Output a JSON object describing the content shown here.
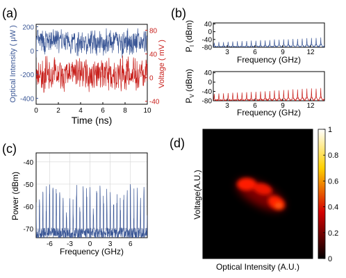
{
  "colors": {
    "blue": "#3b5796",
    "red": "#c8201c",
    "axis": "#000000",
    "grid": "#d9d9d9"
  },
  "chart_data": [
    {
      "panel": "(a)",
      "type": "line",
      "xlabel": "Time (ns)",
      "ylabel_left": "Optical Intensity ( μW )",
      "ylabel_right": "Voltage ( mV )",
      "xlim": [
        0,
        10
      ],
      "ylim_left": [
        -450,
        220
      ],
      "ylim_right": [
        -45,
        90
      ],
      "xticks": [
        "0",
        "2",
        "4",
        "6",
        "8",
        "10"
      ],
      "yticks_left": [
        "200",
        "0",
        "-200",
        "-400"
      ],
      "yticks_right": [
        "80",
        "40",
        "0",
        "-40"
      ],
      "series": [
        {
          "axis": "left",
          "color": "#3b5796",
          "x_range": [
            0,
            10
          ],
          "mean": 70,
          "min": -90,
          "max": 180,
          "description_points": 420
        },
        {
          "axis": "right",
          "color": "#c8201c",
          "x_range": [
            0,
            10
          ],
          "mean": 5,
          "min": -30,
          "max": 35,
          "description_points": 420
        }
      ]
    },
    {
      "panel": "(b) top",
      "type": "line",
      "xlabel": "Frequency (GHz)",
      "ylabel": "P (dBm)",
      "ylabel_subscript": "I",
      "xlim": [
        1.5,
        13.5
      ],
      "ylim": [
        -80,
        45
      ],
      "xticks": [
        "3",
        "6",
        "9",
        "12"
      ],
      "yticks": [
        "40",
        "0",
        "-40",
        "-80"
      ],
      "series": [
        {
          "color": "#3b5796",
          "comb_spacing_GHz": 0.5,
          "comb_start_GHz": 1.6,
          "peak_dBm_low_freq": -55,
          "peak_dBm_high_freq": -30,
          "floor_dBm": -78
        }
      ]
    },
    {
      "panel": "(b) bottom",
      "type": "line",
      "xlabel": "Frequency (GHz)",
      "ylabel": "P (dBm)",
      "ylabel_subscript": "V",
      "xlim": [
        1.5,
        13.5
      ],
      "ylim": [
        -80,
        45
      ],
      "xticks": [
        "3",
        "6",
        "9",
        "12"
      ],
      "yticks": [
        "40",
        "0",
        "-40",
        "-80"
      ],
      "series": [
        {
          "color": "#c8201c",
          "comb_spacing_GHz": 0.5,
          "comb_start_GHz": 1.6,
          "peak_dBm_low_freq": -50,
          "peak_dBm_high_freq": -25,
          "floor_dBm": -78
        }
      ]
    },
    {
      "panel": "(c)",
      "type": "line",
      "xlabel": "Frequency (GHz)",
      "ylabel": "Power (dBm)",
      "xlim": [
        -8,
        8.5
      ],
      "ylim": [
        -74,
        -36
      ],
      "xticks": [
        "-6",
        "-3",
        "0",
        "3",
        "6"
      ],
      "yticks": [
        "-40",
        "-50",
        "-60",
        "-70"
      ],
      "grid": true,
      "series": [
        {
          "color": "#3b5796",
          "comb_spacing_GHz": 0.5,
          "peak_dBm_range": [
            -66,
            -50
          ],
          "floor_dBm": -72
        }
      ]
    },
    {
      "panel": "(d)",
      "type": "heatmap",
      "xlabel": "Optical Intensity (A.U.)",
      "ylabel": "Voltage(A.U.)",
      "colorbar_ticks": [
        "1",
        "0.8",
        "0.6",
        "0.4",
        "0.2",
        "0"
      ],
      "colorbar_range": [
        0,
        1
      ],
      "colormap": "hot",
      "hotspot": "diagonal cluster from upper-left to lower-right, centered right of center"
    }
  ]
}
